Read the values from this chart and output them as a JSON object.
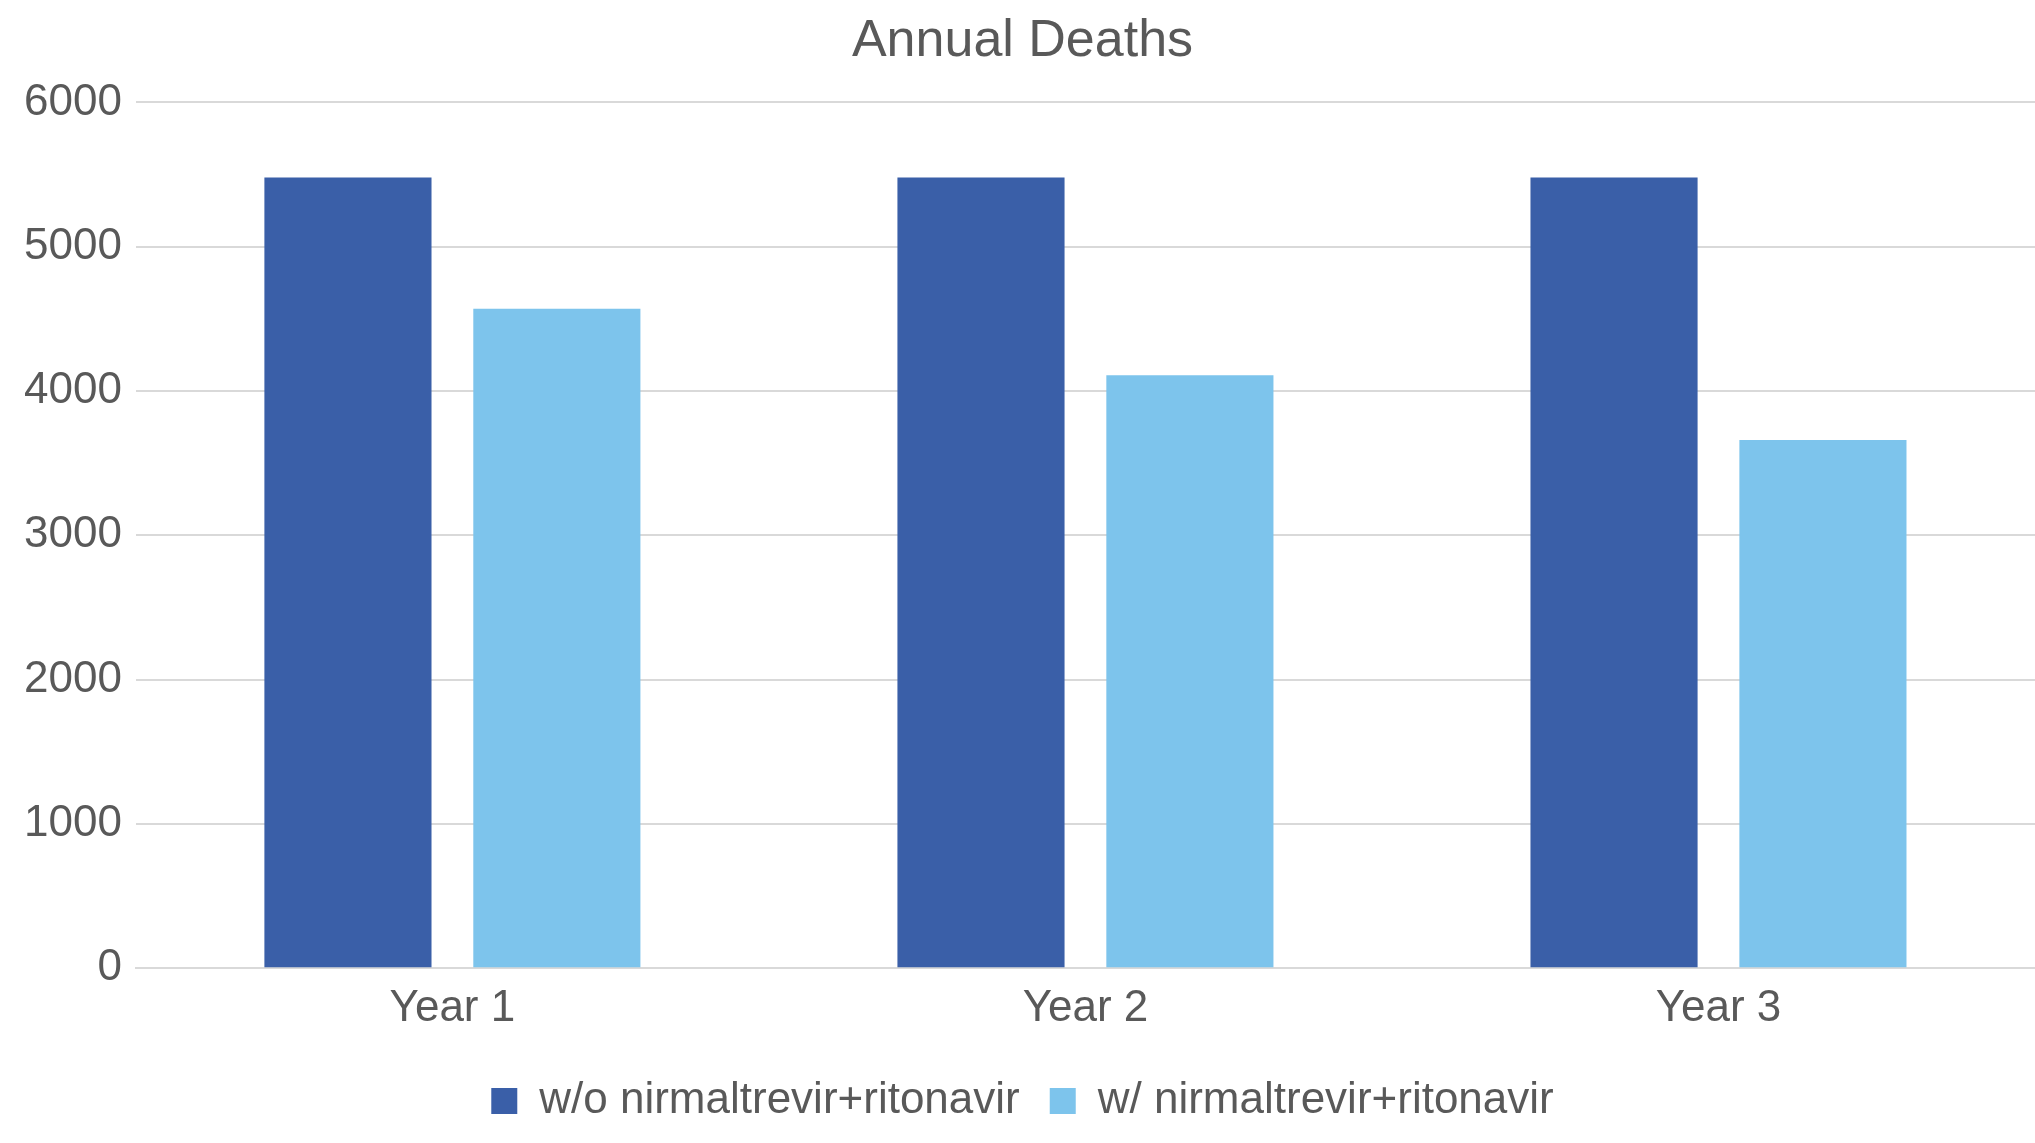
{
  "chart_data": {
    "type": "bar",
    "title": "Annual Deaths",
    "categories": [
      "Year 1",
      "Year 2",
      "Year 3"
    ],
    "series": [
      {
        "name": "w/o nirmaltrevir+ritonavir",
        "color": "#3a5fa8",
        "values": [
          5480,
          5480,
          5480
        ]
      },
      {
        "name": "w/ nirmaltrevir+ritonavir",
        "color": "#7dc4ec",
        "values": [
          4570,
          4110,
          3660
        ]
      }
    ],
    "ylim": [
      0,
      6000
    ],
    "yticks": [
      0,
      1000,
      2000,
      3000,
      4000,
      5000,
      6000
    ],
    "grid": "y",
    "legend": "bottom"
  }
}
